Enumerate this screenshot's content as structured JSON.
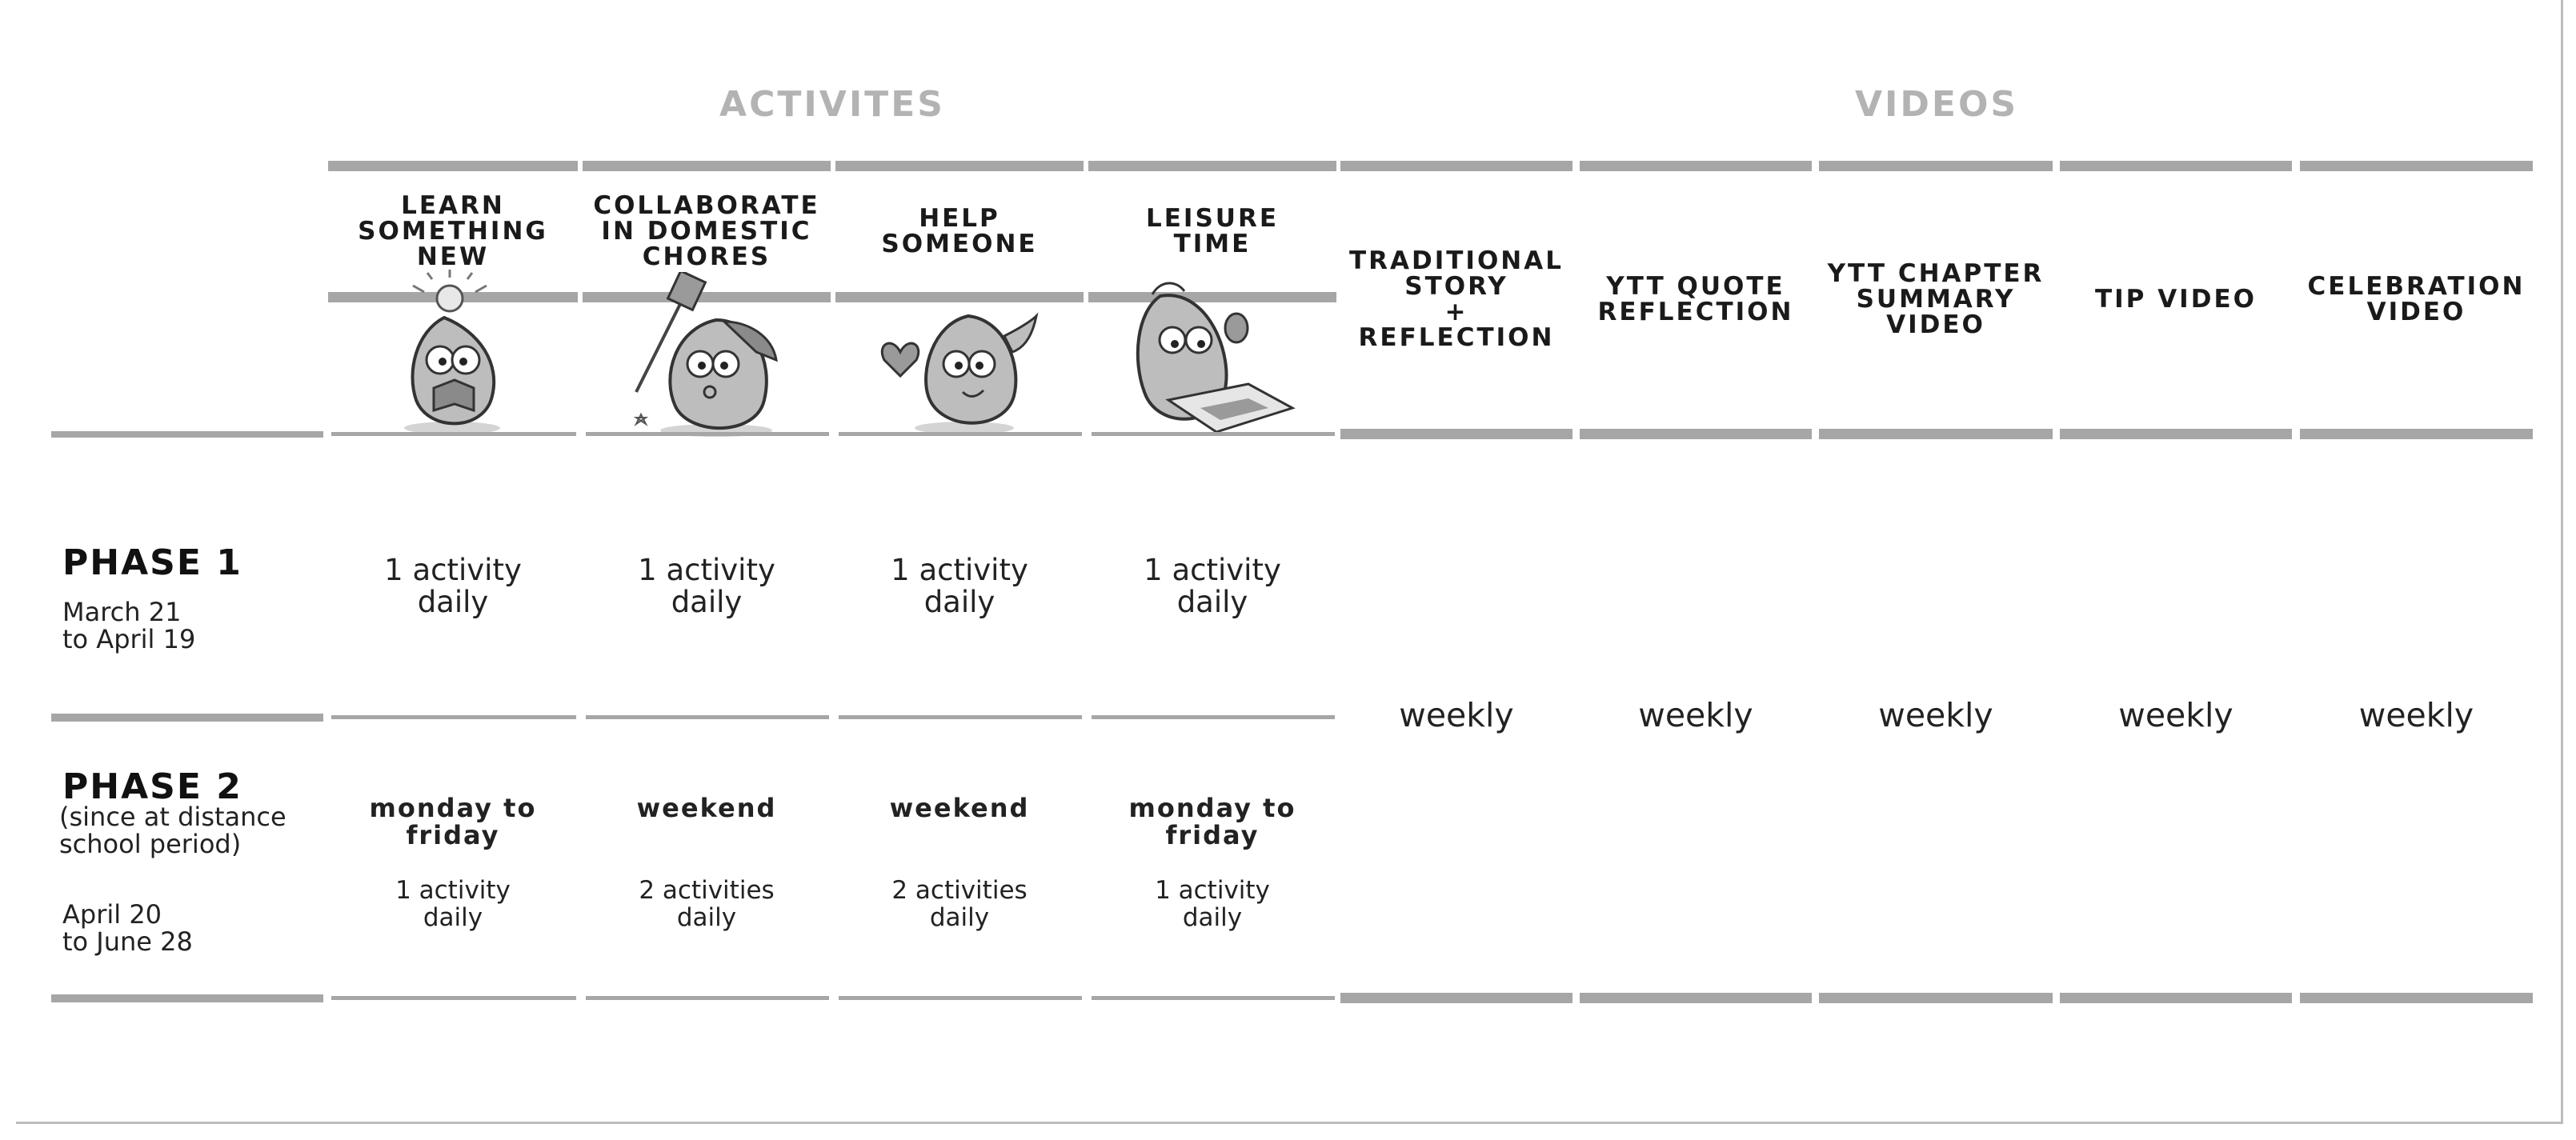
{
  "groups": {
    "activities": "ACTIVITES",
    "videos": "VIDEOS"
  },
  "activity_columns": [
    {
      "title": "LEARN\nSOMETHING\nNEW",
      "icon": "lightbulb-reading-character-icon"
    },
    {
      "title": "COLLABORATE\nIN DOMESTIC\nCHORES",
      "icon": "cleaning-character-icon"
    },
    {
      "title": "HELP\nSOMEONE",
      "icon": "heart-character-icon"
    },
    {
      "title": "LEISURE\nTIME",
      "icon": "drawing-character-icon"
    }
  ],
  "video_columns": [
    {
      "title": "TRADITIONAL\nSTORY\n+\nREFLECTION"
    },
    {
      "title": "YTT QUOTE\nREFLECTION"
    },
    {
      "title": "YTT CHAPTER\nSUMMARY\nVIDEO"
    },
    {
      "title": "TIP VIDEO"
    },
    {
      "title": "CELEBRATION\nVIDEO"
    }
  ],
  "phase1": {
    "title": "PHASE 1",
    "dates": "March 21\nto April 19",
    "cells": [
      "1 activity\ndaily",
      "1 activity\ndaily",
      "1 activity\ndaily",
      "1 activity\ndaily"
    ]
  },
  "phase2": {
    "title": "PHASE 2",
    "note": "(since at distance\nschool period)",
    "dates": "April 20\nto June 28",
    "schedule": [
      "monday to\nfriday",
      "weekend",
      "weekend",
      "monday to\nfriday"
    ],
    "cells": [
      "1 activity\ndaily",
      "2 activities\ndaily",
      "2 activities\ndaily",
      "1 activity\ndaily"
    ]
  },
  "video_frequency": [
    "weekly",
    "weekly",
    "weekly",
    "weekly",
    "weekly"
  ],
  "colors": {
    "rule": "#a6a6a6",
    "group_title": "#b3b3b3",
    "text": "#222222"
  }
}
